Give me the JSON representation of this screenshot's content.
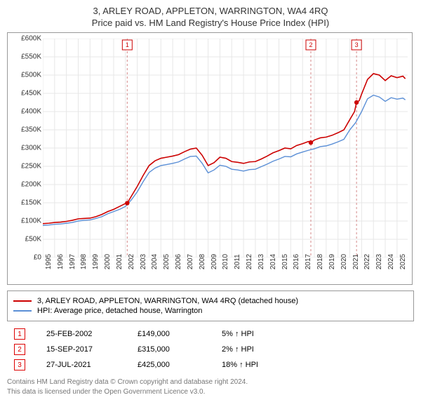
{
  "titles": {
    "line1": "3, ARLEY ROAD, APPLETON, WARRINGTON, WA4 4RQ",
    "line2": "Price paid vs. HM Land Registry's House Price Index (HPI)"
  },
  "chart": {
    "type": "line",
    "background_color": "#ffffff",
    "plot_background": "#ffffff",
    "border_color": "#999999",
    "grid_color": "#e7e7e7",
    "xlim": [
      1995,
      2025.9
    ],
    "ylim": [
      0,
      600000
    ],
    "ytick_step": 50000,
    "ytick_prefix": "£",
    "ytick_suffix": "K",
    "ytick_divisor": 1000,
    "xticks": [
      1995,
      1996,
      1997,
      1998,
      1999,
      2000,
      2001,
      2002,
      2003,
      2004,
      2005,
      2006,
      2007,
      2008,
      2009,
      2010,
      2011,
      2012,
      2013,
      2014,
      2015,
      2016,
      2017,
      2018,
      2019,
      2020,
      2021,
      2022,
      2023,
      2024,
      2025
    ],
    "axis_fontsize": 10,
    "axis_color": "#333333",
    "series": [
      {
        "name": "3, ARLEY ROAD, APPLETON, WARRINGTON, WA4 4RQ (detached house)",
        "color": "#cc0000",
        "line_width": 1.6,
        "points": [
          [
            1995.0,
            93000
          ],
          [
            1995.5,
            94000
          ],
          [
            1996.0,
            96000
          ],
          [
            1996.5,
            97000
          ],
          [
            1997.0,
            99000
          ],
          [
            1997.5,
            102000
          ],
          [
            1998.0,
            106000
          ],
          [
            1998.5,
            107000
          ],
          [
            1999.0,
            108000
          ],
          [
            1999.5,
            112000
          ],
          [
            2000.0,
            118000
          ],
          [
            2000.5,
            126000
          ],
          [
            2001.0,
            132000
          ],
          [
            2001.5,
            140000
          ],
          [
            2002.0,
            148000
          ],
          [
            2002.15,
            149000
          ],
          [
            2002.5,
            168000
          ],
          [
            2003.0,
            195000
          ],
          [
            2003.5,
            225000
          ],
          [
            2004.0,
            252000
          ],
          [
            2004.5,
            265000
          ],
          [
            2005.0,
            272000
          ],
          [
            2005.5,
            275000
          ],
          [
            2006.0,
            278000
          ],
          [
            2006.5,
            282000
          ],
          [
            2007.0,
            290000
          ],
          [
            2007.5,
            297000
          ],
          [
            2008.0,
            300000
          ],
          [
            2008.5,
            280000
          ],
          [
            2009.0,
            252000
          ],
          [
            2009.5,
            260000
          ],
          [
            2010.0,
            275000
          ],
          [
            2010.5,
            272000
          ],
          [
            2011.0,
            263000
          ],
          [
            2011.5,
            261000
          ],
          [
            2012.0,
            258000
          ],
          [
            2012.5,
            262000
          ],
          [
            2013.0,
            263000
          ],
          [
            2013.5,
            270000
          ],
          [
            2014.0,
            278000
          ],
          [
            2014.5,
            287000
          ],
          [
            2015.0,
            293000
          ],
          [
            2015.5,
            300000
          ],
          [
            2016.0,
            298000
          ],
          [
            2016.5,
            307000
          ],
          [
            2017.0,
            312000
          ],
          [
            2017.5,
            318000
          ],
          [
            2017.7,
            315000
          ],
          [
            2018.0,
            322000
          ],
          [
            2018.5,
            328000
          ],
          [
            2019.0,
            330000
          ],
          [
            2019.5,
            335000
          ],
          [
            2020.0,
            342000
          ],
          [
            2020.5,
            350000
          ],
          [
            2021.0,
            378000
          ],
          [
            2021.4,
            400000
          ],
          [
            2021.57,
            425000
          ],
          [
            2021.8,
            430000
          ],
          [
            2022.0,
            448000
          ],
          [
            2022.5,
            488000
          ],
          [
            2023.0,
            504000
          ],
          [
            2023.5,
            500000
          ],
          [
            2024.0,
            485000
          ],
          [
            2024.5,
            498000
          ],
          [
            2025.0,
            493000
          ],
          [
            2025.5,
            497000
          ],
          [
            2025.7,
            490000
          ]
        ]
      },
      {
        "name": "HPI: Average price, detached house, Warrington",
        "color": "#5b8fd6",
        "line_width": 1.4,
        "points": [
          [
            1995.0,
            88000
          ],
          [
            1995.5,
            89000
          ],
          [
            1996.0,
            91000
          ],
          [
            1996.5,
            92000
          ],
          [
            1997.0,
            94000
          ],
          [
            1997.5,
            96000
          ],
          [
            1998.0,
            100000
          ],
          [
            1998.5,
            102000
          ],
          [
            1999.0,
            103000
          ],
          [
            1999.5,
            107000
          ],
          [
            2000.0,
            112000
          ],
          [
            2000.5,
            120000
          ],
          [
            2001.0,
            126000
          ],
          [
            2001.5,
            132000
          ],
          [
            2002.0,
            140000
          ],
          [
            2002.5,
            158000
          ],
          [
            2003.0,
            180000
          ],
          [
            2003.5,
            208000
          ],
          [
            2004.0,
            233000
          ],
          [
            2004.5,
            245000
          ],
          [
            2005.0,
            252000
          ],
          [
            2005.5,
            255000
          ],
          [
            2006.0,
            258000
          ],
          [
            2006.5,
            262000
          ],
          [
            2007.0,
            270000
          ],
          [
            2007.5,
            277000
          ],
          [
            2008.0,
            278000
          ],
          [
            2008.5,
            258000
          ],
          [
            2009.0,
            232000
          ],
          [
            2009.5,
            240000
          ],
          [
            2010.0,
            253000
          ],
          [
            2010.5,
            250000
          ],
          [
            2011.0,
            242000
          ],
          [
            2011.5,
            240000
          ],
          [
            2012.0,
            237000
          ],
          [
            2012.5,
            241000
          ],
          [
            2013.0,
            242000
          ],
          [
            2013.5,
            249000
          ],
          [
            2014.0,
            256000
          ],
          [
            2014.5,
            264000
          ],
          [
            2015.0,
            270000
          ],
          [
            2015.5,
            277000
          ],
          [
            2016.0,
            276000
          ],
          [
            2016.5,
            284000
          ],
          [
            2017.0,
            289000
          ],
          [
            2017.5,
            294000
          ],
          [
            2018.0,
            298000
          ],
          [
            2018.5,
            304000
          ],
          [
            2019.0,
            306000
          ],
          [
            2019.5,
            311000
          ],
          [
            2020.0,
            317000
          ],
          [
            2020.5,
            324000
          ],
          [
            2021.0,
            350000
          ],
          [
            2021.5,
            370000
          ],
          [
            2022.0,
            400000
          ],
          [
            2022.5,
            435000
          ],
          [
            2023.0,
            445000
          ],
          [
            2023.5,
            440000
          ],
          [
            2024.0,
            428000
          ],
          [
            2024.5,
            438000
          ],
          [
            2025.0,
            434000
          ],
          [
            2025.5,
            437000
          ],
          [
            2025.7,
            432000
          ]
        ]
      }
    ],
    "markers": [
      {
        "label": "1",
        "x": 2002.15,
        "y": 149000,
        "date": "25-FEB-2002",
        "price": "£149,000",
        "hpi": "5% ↑ HPI"
      },
      {
        "label": "2",
        "x": 2017.7,
        "y": 315000,
        "date": "15-SEP-2017",
        "price": "£315,000",
        "hpi": "2% ↑ HPI"
      },
      {
        "label": "3",
        "x": 2021.57,
        "y": 425000,
        "date": "27-JUL-2021",
        "price": "£425,000",
        "hpi": "18% ↑ HPI"
      }
    ],
    "marker_style": {
      "dot_color": "#cc0000",
      "dot_radius": 3.2,
      "vline_color": "#d48a8a",
      "vline_dash": "3,3",
      "badge_border": "#cc0000",
      "badge_text_color": "#cc0000",
      "badge_size": 14,
      "badge_fontsize": 9
    }
  },
  "legend": {
    "items": [
      {
        "color": "#cc0000",
        "text": "3, ARLEY ROAD, APPLETON, WARRINGTON, WA4 4RQ (detached house)"
      },
      {
        "color": "#5b8fd6",
        "text": "HPI: Average price, detached house, Warrington"
      }
    ]
  },
  "attribution": {
    "line1": "Contains HM Land Registry data © Crown copyright and database right 2024.",
    "line2": "This data is licensed under the Open Government Licence v3.0."
  }
}
